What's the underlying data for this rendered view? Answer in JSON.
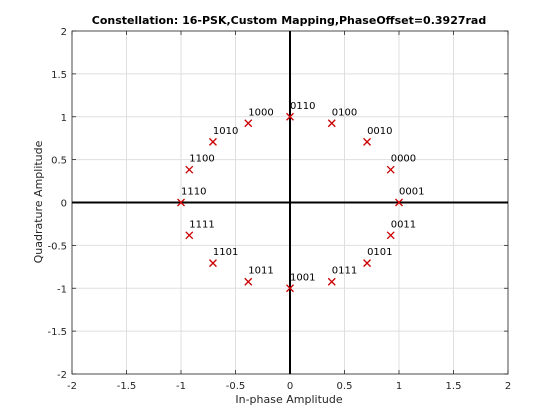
{
  "chart_data": {
    "type": "scatter",
    "title": "Constellation: 16-PSK,Custom Mapping,PhaseOffset=0.3927rad",
    "xlabel": "In-phase Amplitude",
    "ylabel": "Quadrature Amplitude",
    "xlim": [
      -2,
      2
    ],
    "ylim": [
      -2,
      2
    ],
    "xticks": [
      -2,
      -1.5,
      -1,
      -0.5,
      0,
      0.5,
      1,
      1.5,
      2
    ],
    "yticks": [
      -2,
      -1.5,
      -1,
      -0.5,
      0,
      0.5,
      1,
      1.5,
      2
    ],
    "xtick_labels": [
      "-2",
      "-1.5",
      "-1",
      "-0.5",
      "0",
      "0.5",
      "1",
      "1.5",
      "2"
    ],
    "ytick_labels": [
      "-2",
      "-1.5",
      "-1",
      "-0.5",
      "0",
      "0.5",
      "1",
      "1.5",
      "2"
    ],
    "grid": true,
    "marker": "x",
    "marker_color": "#cc0000",
    "points": [
      {
        "label": "0001",
        "x": 1.0,
        "y": 0.0
      },
      {
        "label": "0000",
        "x": 0.924,
        "y": 0.383
      },
      {
        "label": "0010",
        "x": 0.707,
        "y": 0.707
      },
      {
        "label": "0100",
        "x": 0.383,
        "y": 0.924
      },
      {
        "label": "0110",
        "x": 0.0,
        "y": 1.0
      },
      {
        "label": "1000",
        "x": -0.383,
        "y": 0.924
      },
      {
        "label": "1010",
        "x": -0.707,
        "y": 0.707
      },
      {
        "label": "1100",
        "x": -0.924,
        "y": 0.383
      },
      {
        "label": "1110",
        "x": -1.0,
        "y": 0.0
      },
      {
        "label": "1111",
        "x": -0.924,
        "y": -0.383
      },
      {
        "label": "1101",
        "x": -0.707,
        "y": -0.707
      },
      {
        "label": "1011",
        "x": -0.383,
        "y": -0.924
      },
      {
        "label": "1001",
        "x": 0.0,
        "y": -1.0
      },
      {
        "label": "0111",
        "x": 0.383,
        "y": -0.924
      },
      {
        "label": "0101",
        "x": 0.707,
        "y": -0.707
      },
      {
        "label": "0011",
        "x": 0.924,
        "y": -0.383
      }
    ]
  }
}
